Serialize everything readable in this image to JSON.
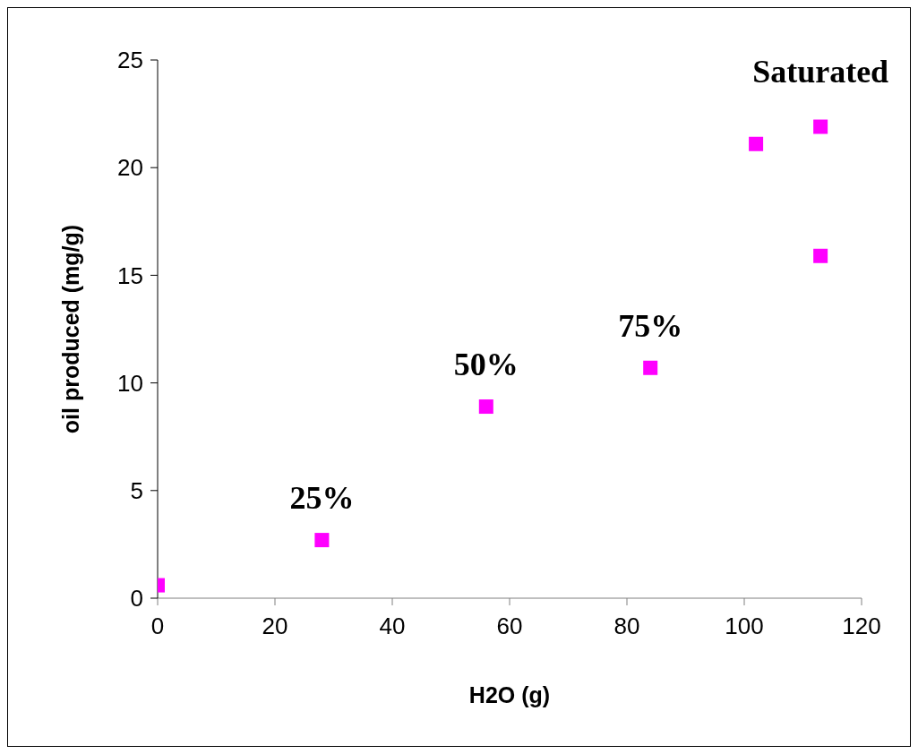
{
  "chart_data": {
    "type": "scatter",
    "xlabel": "H2O (g)",
    "ylabel": "oil produced (mg/g)",
    "x": [
      0,
      28,
      56,
      84,
      102,
      113,
      113
    ],
    "values": [
      0.6,
      2.7,
      8.9,
      10.7,
      21.1,
      21.9,
      15.9
    ],
    "color": "#ff00ff",
    "marker": "square",
    "xlim": [
      0,
      120
    ],
    "xticks": [
      0,
      20,
      40,
      60,
      80,
      100,
      120
    ],
    "ylim": [
      0,
      25
    ],
    "yticks": [
      0,
      5,
      10,
      15,
      20,
      25
    ],
    "grid": false,
    "legend": false,
    "annotations": [
      {
        "text": "25%",
        "x": 28,
        "y": 2.7
      },
      {
        "text": "50%",
        "x": 56,
        "y": 8.9
      },
      {
        "text": "75%",
        "x": 84,
        "y": 10.7
      },
      {
        "text": "Saturated",
        "x": 113,
        "y": 21.9
      }
    ]
  }
}
